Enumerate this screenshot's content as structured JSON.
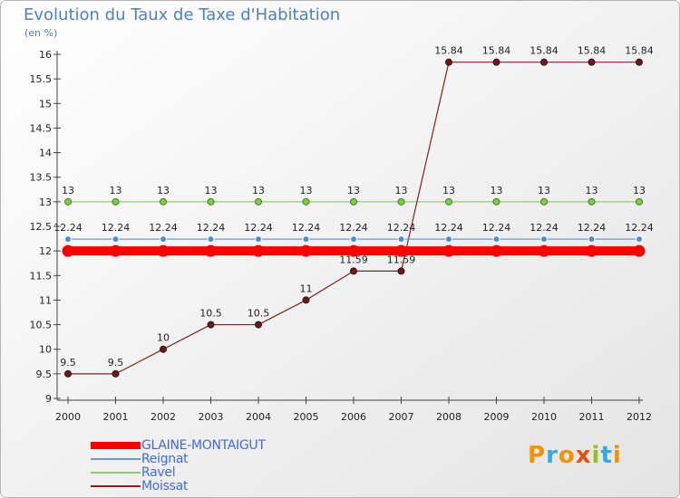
{
  "chart_data": {
    "type": "line",
    "title": "Evolution du Taux de Taxe d'Habitation",
    "subtitle": "(en %)",
    "x": [
      "2000",
      "2001",
      "2002",
      "2003",
      "2004",
      "2005",
      "2006",
      "2007",
      "2008",
      "2009",
      "2010",
      "2011",
      "2012"
    ],
    "yticks": [
      "9",
      "9.5",
      "10",
      "10.5",
      "11",
      "11.5",
      "12",
      "12.5",
      "13",
      "13.5",
      "14",
      "14.5",
      "15",
      "15.5",
      "16"
    ],
    "ylim": [
      9,
      16
    ],
    "grid": false,
    "legend_position": "bottom-left",
    "series": [
      {
        "name": "GLAINE-MONTAIGUT",
        "color": "#ff0000",
        "values": [
          12,
          12,
          12,
          12,
          12,
          12,
          12,
          12,
          12,
          12,
          12,
          12,
          12
        ],
        "labels": []
      },
      {
        "name": "Reignat",
        "color": "#6b9bc8",
        "values": [
          12.24,
          12.24,
          12.24,
          12.24,
          12.24,
          12.24,
          12.24,
          12.24,
          12.24,
          12.24,
          12.24,
          12.24,
          12.24
        ],
        "labels": [
          "12.24",
          "12.24",
          "12.24",
          "12.24",
          "12.24",
          "12.24",
          "12.24",
          "12.24",
          "12.24",
          "12.24",
          "12.24",
          "12.24",
          "12.24"
        ]
      },
      {
        "name": "Ravel",
        "color": "#8ed35e",
        "values": [
          13,
          13,
          13,
          13,
          13,
          13,
          13,
          13,
          13,
          13,
          13,
          13,
          13
        ],
        "labels": [
          "13",
          "13",
          "13",
          "13",
          "13",
          "13",
          "13",
          "13",
          "13",
          "13",
          "13",
          "13",
          "13"
        ]
      },
      {
        "name": "Moissat",
        "color": "#7b2525",
        "values": [
          9.5,
          9.5,
          10,
          10.5,
          10.5,
          11,
          11.59,
          11.59,
          15.84,
          15.84,
          15.84,
          15.84,
          15.84
        ],
        "labels": [
          "9.5",
          "9.5",
          "10",
          "10.5",
          "10.5",
          "11",
          "11.59",
          "11.59",
          "15.84",
          "15.84",
          "15.84",
          "15.84",
          "15.84"
        ]
      }
    ]
  },
  "logo": {
    "letters": [
      "P",
      "r",
      "o",
      "x",
      "i",
      "t",
      "i"
    ],
    "colors": [
      "#f39200",
      "#36a9e1",
      "#f39200",
      "#e84e0f",
      "#95c11f",
      "#36a9e1",
      "#f39200"
    ]
  }
}
